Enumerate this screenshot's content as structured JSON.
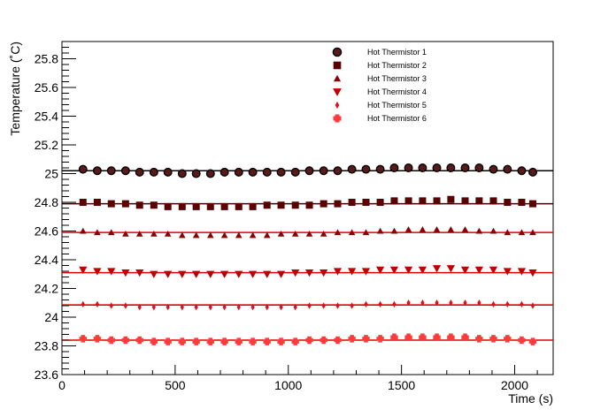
{
  "chart_data": {
    "type": "scatter",
    "xlabel": "Time (s)",
    "ylabel": "Temperature (˚C)",
    "xlim": [
      0,
      2170
    ],
    "ylim": [
      23.6,
      25.92
    ],
    "x_ticks": [
      0,
      500,
      1000,
      1500,
      2000
    ],
    "y_ticks": [
      23.6,
      23.8,
      24,
      24.2,
      24.4,
      24.6,
      24.8,
      25,
      25.2,
      25.4,
      25.6,
      25.8
    ],
    "legend_position": "top-right",
    "grid": false,
    "x": [
      93,
      156,
      218,
      281,
      343,
      406,
      468,
      531,
      593,
      656,
      718,
      781,
      843,
      906,
      968,
      1031,
      1093,
      1156,
      1218,
      1281,
      1343,
      1406,
      1468,
      1531,
      1593,
      1656,
      1718,
      1781,
      1843,
      1906,
      1968,
      2031,
      2080
    ],
    "series": [
      {
        "name": "Hot Thermistor 1",
        "marker": "circle",
        "color": "#000000",
        "fill": "#5a1a1a",
        "fit": 25.02,
        "values": [
          25.03,
          25.02,
          25.02,
          25.02,
          25.01,
          25.01,
          25.01,
          25.0,
          25.0,
          25.0,
          25.01,
          25.01,
          25.01,
          25.01,
          25.01,
          25.01,
          25.02,
          25.02,
          25.02,
          25.03,
          25.03,
          25.03,
          25.04,
          25.04,
          25.04,
          25.04,
          25.04,
          25.04,
          25.04,
          25.03,
          25.03,
          25.02,
          25.01
        ]
      },
      {
        "name": "Hot Thermistor 2",
        "marker": "square",
        "color": "#5a0000",
        "fit": 24.79,
        "values": [
          24.8,
          24.8,
          24.79,
          24.79,
          24.78,
          24.78,
          24.77,
          24.77,
          24.77,
          24.77,
          24.77,
          24.77,
          24.77,
          24.78,
          24.78,
          24.78,
          24.78,
          24.79,
          24.79,
          24.8,
          24.8,
          24.8,
          24.81,
          24.81,
          24.81,
          24.81,
          24.82,
          24.81,
          24.81,
          24.81,
          24.8,
          24.8,
          24.79
        ]
      },
      {
        "name": "Hot Thermistor 3",
        "marker": "triangle-up",
        "color": "#8b0000",
        "fit": 24.59,
        "values": [
          24.6,
          24.59,
          24.59,
          24.58,
          24.58,
          24.58,
          24.58,
          24.57,
          24.57,
          24.57,
          24.57,
          24.57,
          24.57,
          24.57,
          24.58,
          24.58,
          24.58,
          24.58,
          24.59,
          24.59,
          24.59,
          24.6,
          24.6,
          24.61,
          24.61,
          24.61,
          24.61,
          24.61,
          24.6,
          24.6,
          24.59,
          24.59,
          24.59
        ]
      },
      {
        "name": "Hot Thermistor 4",
        "marker": "triangle-down",
        "color": "#c00000",
        "fit": 24.31,
        "values": [
          24.33,
          24.32,
          24.32,
          24.31,
          24.31,
          24.3,
          24.3,
          24.3,
          24.3,
          24.3,
          24.3,
          24.3,
          24.3,
          24.3,
          24.3,
          24.31,
          24.31,
          24.31,
          24.32,
          24.32,
          24.32,
          24.33,
          24.33,
          24.33,
          24.33,
          24.34,
          24.34,
          24.33,
          24.33,
          24.33,
          24.32,
          24.32,
          24.31
        ]
      },
      {
        "name": "Hot Thermistor 5",
        "marker": "diamond",
        "color": "#e01010",
        "fit": 24.085,
        "values": [
          24.09,
          24.09,
          24.08,
          24.08,
          24.07,
          24.07,
          24.07,
          24.07,
          24.07,
          24.07,
          24.07,
          24.07,
          24.07,
          24.07,
          24.07,
          24.07,
          24.08,
          24.08,
          24.08,
          24.08,
          24.09,
          24.09,
          24.09,
          24.1,
          24.1,
          24.1,
          24.1,
          24.1,
          24.1,
          24.09,
          24.09,
          24.09,
          24.08
        ]
      },
      {
        "name": "Hot Thermistor 6",
        "marker": "cross",
        "color": "#ff3a3a",
        "fit": 23.84,
        "values": [
          23.85,
          23.85,
          23.84,
          23.84,
          23.84,
          23.83,
          23.83,
          23.83,
          23.83,
          23.83,
          23.83,
          23.83,
          23.83,
          23.83,
          23.83,
          23.83,
          23.84,
          23.84,
          23.84,
          23.85,
          23.85,
          23.85,
          23.86,
          23.86,
          23.86,
          23.86,
          23.86,
          23.86,
          23.85,
          23.85,
          23.85,
          23.84,
          23.83
        ]
      }
    ]
  }
}
